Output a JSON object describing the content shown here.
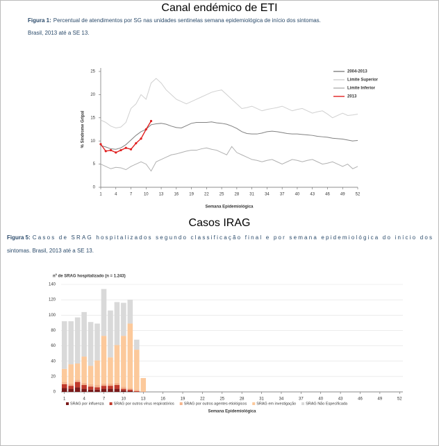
{
  "chart_data": [
    {
      "type": "line",
      "title": "Canal endémico de ETI",
      "caption_label": "Figura 1:",
      "caption_lines": [
        "Percentual de atendimentos por SG nas unidades sentinelas semana epidemiológica de início dos sintomas.",
        "Brasil, 2013 até a SE 13."
      ],
      "y_label": "% Síndrome Gripal",
      "x_label": "Semana Epidemiológica",
      "x": [
        1,
        2,
        3,
        4,
        5,
        6,
        7,
        8,
        9,
        10,
        11,
        12,
        13,
        14,
        15,
        16,
        17,
        18,
        19,
        20,
        21,
        22,
        23,
        24,
        25,
        26,
        27,
        28,
        29,
        30,
        31,
        32,
        33,
        34,
        35,
        36,
        37,
        38,
        39,
        40,
        41,
        42,
        43,
        44,
        45,
        46,
        47,
        48,
        49,
        50,
        51,
        52
      ],
      "xlim": [
        1,
        52
      ],
      "xticks": [
        1,
        4,
        7,
        10,
        13,
        16,
        19,
        22,
        25,
        28,
        31,
        34,
        37,
        40,
        43,
        46,
        49,
        52
      ],
      "ylim": [
        0,
        25
      ],
      "yticks": [
        0,
        5,
        10,
        15,
        20,
        25
      ],
      "grid": false,
      "legend": "top-right",
      "series": [
        {
          "name": "2004-2013",
          "color": "#808080",
          "values": [
            9,
            8.7,
            8.3,
            8.2,
            8.5,
            9.2,
            10.2,
            11.2,
            12,
            12.5,
            13.5,
            13.7,
            13.8,
            13.6,
            13.2,
            12.9,
            12.8,
            13.3,
            13.8,
            14,
            14,
            14,
            14.1,
            13.9,
            13.8,
            13.6,
            13.2,
            12.7,
            12,
            11.6,
            11.5,
            11.5,
            11.7,
            12,
            12.1,
            12,
            11.8,
            11.6,
            11.5,
            11.5,
            11.4,
            11.3,
            11.2,
            11,
            10.9,
            10.8,
            10.6,
            10.5,
            10.4,
            10.2,
            10,
            10.1
          ]
        },
        {
          "name": "Limite Superior",
          "color": "#d0d0d0",
          "values": [
            14.5,
            14,
            13.2,
            12.8,
            13,
            14,
            17,
            18,
            20,
            19,
            22.5,
            23.5,
            22.5,
            21,
            20,
            19,
            18.5,
            18,
            18.5,
            19,
            19.5,
            20,
            20.5,
            20.8,
            21,
            20,
            19,
            18,
            17,
            17.2,
            17.5,
            17,
            16.5,
            16.8,
            17,
            17.2,
            17.5,
            17,
            16.5,
            16.8,
            17,
            16.5,
            16,
            16.3,
            16.5,
            15.8,
            15,
            15.5,
            16,
            15.5,
            15.6,
            15.8
          ]
        },
        {
          "name": "Limite Inferior",
          "color": "#b0b0b0",
          "values": [
            5,
            4.5,
            4,
            4.3,
            4.2,
            3.8,
            4.5,
            5,
            5.5,
            5,
            3.5,
            5.5,
            6,
            6.5,
            7,
            7.2,
            7.5,
            7.8,
            8,
            8,
            8.3,
            8.5,
            8.2,
            8,
            7.5,
            7,
            8.8,
            7.5,
            7,
            6.5,
            6,
            5.8,
            5.5,
            5.8,
            6,
            5.5,
            5,
            5.5,
            6,
            5.8,
            5.5,
            5.8,
            6,
            5.5,
            5,
            5.2,
            5.5,
            5,
            4.5,
            5,
            4,
            4.5
          ]
        },
        {
          "name": "2013",
          "color": "#e02020",
          "marker": true,
          "values": [
            9.3,
            7.8,
            8,
            7.5,
            8,
            8.5,
            8.2,
            9.5,
            10.5,
            12.5,
            14.3,
            null,
            null,
            null,
            null,
            null,
            null,
            null,
            null,
            null,
            null,
            null,
            null,
            null,
            null,
            null,
            null,
            null,
            null,
            null,
            null,
            null,
            null,
            null,
            null,
            null,
            null,
            null,
            null,
            null,
            null,
            null,
            null,
            null,
            null,
            null,
            null,
            null,
            null,
            null,
            null,
            null
          ]
        }
      ]
    },
    {
      "type": "stacked-bar",
      "title": "Casos IRAG",
      "caption_label": "Figura 5:",
      "caption_lines": [
        "Casos de SRAG hospitalizados segundo classificação final e por semana epidemiológica do início dos",
        "sintomas. Brasil, 2013 até a SE 13."
      ],
      "y_label": "nº de SRAG hospitalizado (n = 1.243)",
      "x_label": "Semana Epidemiológica",
      "x": [
        1,
        2,
        3,
        4,
        5,
        6,
        7,
        8,
        9,
        10,
        11,
        12,
        13,
        14,
        15,
        16,
        17,
        18,
        19,
        20,
        21,
        22,
        23,
        24,
        25,
        26,
        27,
        28,
        29,
        30,
        31,
        32,
        33,
        34,
        35,
        36,
        37,
        38,
        39,
        40,
        41,
        42,
        43,
        44,
        45,
        46,
        47,
        48,
        49,
        50,
        51,
        52
      ],
      "xlim": [
        0.5,
        52.5
      ],
      "xticks": [
        1,
        4,
        7,
        10,
        13,
        16,
        19,
        22,
        25,
        28,
        31,
        34,
        37,
        40,
        43,
        46,
        49,
        52
      ],
      "ylim": [
        0,
        140
      ],
      "yticks": [
        0,
        20,
        40,
        60,
        80,
        100,
        120,
        140
      ],
      "grid": true,
      "legend": "bottom",
      "series": [
        {
          "name": "SRAG por influenza",
          "color": "#7b1a1a",
          "values": [
            5,
            4,
            6,
            4,
            3,
            3,
            4,
            4,
            4,
            2,
            1,
            0,
            0,
            0,
            0,
            0,
            0,
            0,
            0,
            0,
            0,
            0,
            0,
            0,
            0,
            0,
            0,
            0,
            0,
            0,
            0,
            0,
            0,
            0,
            0,
            0,
            0,
            0,
            0,
            0,
            0,
            0,
            0,
            0,
            0,
            0,
            0,
            0,
            0,
            0,
            0,
            0
          ]
        },
        {
          "name": "SRAG por outros vírus respiratórios",
          "color": "#c0392b",
          "values": [
            5,
            4,
            7,
            5,
            4,
            3,
            4,
            4,
            5,
            2,
            2,
            1,
            0,
            0,
            0,
            0,
            0,
            0,
            0,
            0,
            0,
            0,
            0,
            0,
            0,
            0,
            0,
            0,
            0,
            0,
            0,
            0,
            0,
            0,
            0,
            0,
            0,
            0,
            0,
            0,
            0,
            0,
            0,
            0,
            0,
            0,
            0,
            0,
            0,
            0,
            0,
            0
          ]
        },
        {
          "name": "SRAG por outros agentes etiológicos",
          "color": "#f4b48c",
          "values": [
            3,
            3,
            3,
            3,
            3,
            3,
            3,
            3,
            3,
            3,
            2,
            2,
            1,
            0,
            0,
            0,
            0,
            0,
            0,
            0,
            0,
            0,
            0,
            0,
            0,
            0,
            0,
            0,
            0,
            0,
            0,
            0,
            0,
            0,
            0,
            0,
            0,
            0,
            0,
            0,
            0,
            0,
            0,
            0,
            0,
            0,
            0,
            0,
            0,
            0,
            0,
            0
          ]
        },
        {
          "name": "SRAG em investigação",
          "color": "#fcc99b",
          "values": [
            17,
            25,
            21,
            34,
            24,
            32,
            62,
            34,
            49,
            66,
            84,
            52,
            17,
            0,
            0,
            0,
            0,
            0,
            0,
            0,
            0,
            0,
            0,
            0,
            0,
            0,
            0,
            0,
            0,
            0,
            0,
            0,
            0,
            0,
            0,
            0,
            0,
            0,
            0,
            0,
            0,
            0,
            0,
            0,
            0,
            0,
            0,
            0,
            0,
            0,
            0,
            0
          ]
        },
        {
          "name": "SRAG Não Especificada",
          "color": "#d9d9d9",
          "values": [
            62,
            56,
            60,
            58,
            57,
            48,
            61,
            61,
            56,
            43,
            31,
            13,
            0,
            0,
            0,
            0,
            0,
            0,
            0,
            0,
            0,
            0,
            0,
            0,
            0,
            0,
            0,
            0,
            0,
            0,
            0,
            0,
            0,
            0,
            0,
            0,
            0,
            0,
            0,
            0,
            0,
            0,
            0,
            0,
            0,
            0,
            0,
            0,
            0,
            0,
            0,
            0
          ]
        }
      ]
    }
  ]
}
